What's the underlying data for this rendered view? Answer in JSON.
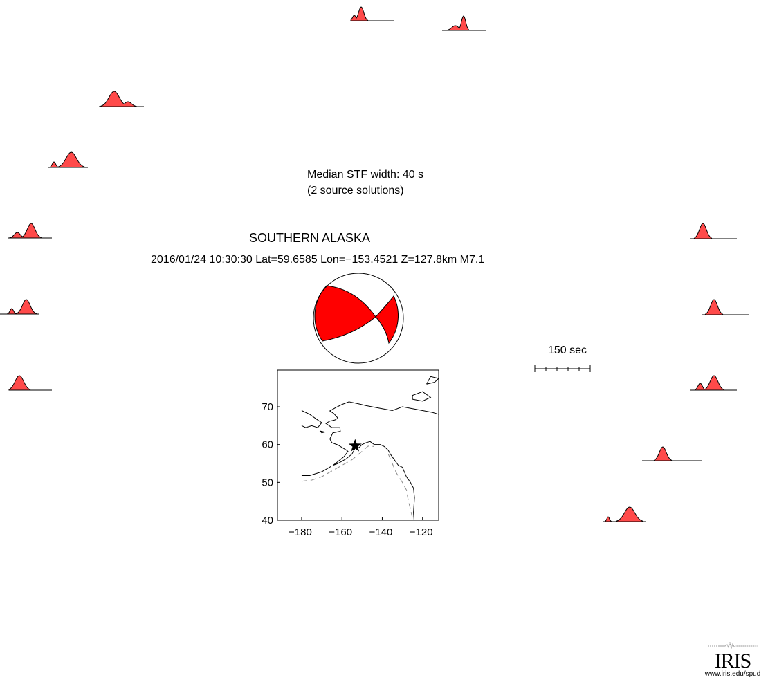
{
  "stf": {
    "median_width_label": "Median STF width: 40 s",
    "solutions_label": "(2 source solutions)"
  },
  "event": {
    "region": "SOUTHERN ALASKA",
    "info": "2016/01/24 10:30:30  Lat=59.6585 Lon=−153.4521  Z=127.8km  M7.1",
    "lat": 59.6585,
    "lon": -153.4521
  },
  "scale_bar": {
    "label": "150 sec",
    "seconds": 150
  },
  "map": {
    "x_ticks": [
      "−180",
      "−160",
      "−140",
      "−120"
    ],
    "x_tick_values": [
      -180,
      -160,
      -140,
      -120
    ],
    "y_ticks": [
      "70",
      "60",
      "50",
      "40"
    ],
    "y_tick_values": [
      70,
      60,
      50,
      40
    ],
    "xlim": [
      -192,
      -112
    ],
    "ylim": [
      40,
      79.7
    ]
  },
  "colors": {
    "stf_fill": "#ff4a4a",
    "beachball_fill": "#ff0000",
    "plate_boundary": "#888888"
  },
  "logo": {
    "name": "IRIS",
    "url": "www.iris.edu/spud"
  }
}
